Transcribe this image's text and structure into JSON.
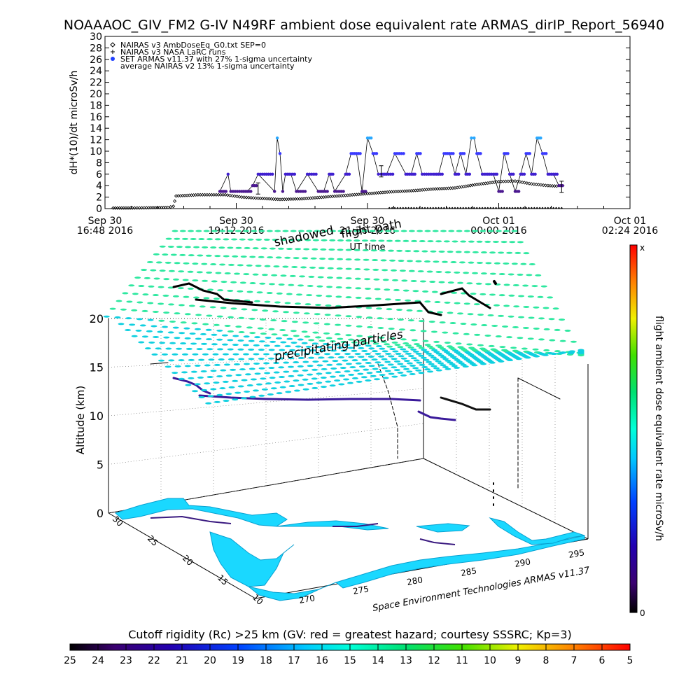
{
  "figure": {
    "title": "NOAAAOC_GIV_FM2 G-IV    N49RF  ambient dose equivalent rate ARMAS_dirIP_Report_56940",
    "credit": "Space Environment Technologies ARMAS v11.37",
    "annot_shadowed": "shadowed",
    "annot_flightpath": "flight path",
    "annot_precip": "precipitating particles"
  },
  "chart_data": [
    {
      "type": "scatter",
      "ylabel": "dH*(10)/dt microSv/h",
      "xlabel": "UT time",
      "ylim": [
        0,
        30
      ],
      "yticks": [
        "0",
        "2",
        "4",
        "6",
        "8",
        "10",
        "12",
        "14",
        "16",
        "18",
        "20",
        "22",
        "24",
        "26",
        "28",
        "30"
      ],
      "xticks": [
        {
          "l1": "Sep 30",
          "l2": "16:48 2016"
        },
        {
          "l1": "Sep 30",
          "l2": "19:12 2016"
        },
        {
          "l1": "Sep 30",
          "l2": "21:36 2016"
        },
        {
          "l1": "Oct 01",
          "l2": "00:00 2016"
        },
        {
          "l1": "Oct 01",
          "l2": "02:24 2016"
        }
      ],
      "x_range_hours": [
        16.8,
        26.4
      ],
      "legend": [
        {
          "symbol": "diamond",
          "text": "NAIRAS v3 AmbDoseEq_G0.txt SEP=0"
        },
        {
          "symbol": "plus",
          "text": "NAIRAS v3 NASA LaRC runs"
        },
        {
          "symbol": "dot",
          "text": "SET ARMAS v11.37 with 27% 1-sigma uncertainty"
        },
        {
          "symbol": "none",
          "text": "average NAIRAS v2 13% 1-sigma uncertainty"
        }
      ],
      "legend_position": "top-left",
      "series": [
        {
          "name": "NAIRAS v3 AmbDoseEq_G0.txt SEP=0",
          "x": [
            16.95,
            17.3,
            17.6,
            17.95,
            18.05,
            18.1,
            18.5,
            19.0,
            19.3,
            19.6,
            20.0,
            20.4,
            20.8,
            21.2,
            21.6,
            22.0,
            22.4,
            22.8,
            23.2,
            23.6,
            24.0,
            24.3,
            24.6,
            24.9,
            25.1
          ],
          "y": [
            0.1,
            0.1,
            0.15,
            0.2,
            0.4,
            2.2,
            2.4,
            2.4,
            2.0,
            1.8,
            1.6,
            1.7,
            2.0,
            2.3,
            2.6,
            2.9,
            3.1,
            3.4,
            3.6,
            4.2,
            4.7,
            4.8,
            4.3,
            4.0,
            3.9
          ]
        },
        {
          "name": "SET ARMAS v11.37 with 27% 1-sigma uncertainty",
          "x": [
            18.9,
            19.05,
            19.1,
            19.3,
            19.4,
            19.5,
            19.6,
            19.9,
            19.95,
            20.0,
            20.05,
            20.1,
            20.2,
            20.3,
            20.5,
            20.7,
            20.8,
            20.9,
            21.0,
            21.2,
            21.3,
            21.4,
            21.5,
            21.6,
            21.7,
            21.8,
            21.85,
            21.95,
            22.1,
            22.3,
            22.4,
            22.5,
            22.6,
            22.8,
            22.9,
            23.0,
            23.1,
            23.2,
            23.3,
            23.4,
            23.5,
            23.55,
            23.6,
            23.7,
            23.8,
            23.9,
            24.0,
            24.1,
            24.2,
            24.3,
            24.4,
            24.5,
            24.6,
            24.7,
            24.8,
            24.9,
            25.0,
            25.1,
            25.2
          ],
          "y": [
            3,
            6,
            3,
            3,
            3,
            4,
            6,
            3,
            12.3,
            9.6,
            3,
            6,
            6,
            3,
            6,
            3,
            3,
            6,
            3,
            6,
            9.6,
            9.6,
            3,
            12.3,
            9.6,
            6,
            6,
            6,
            9.6,
            6,
            6,
            9.6,
            6,
            6,
            6,
            9.6,
            9.6,
            6,
            9.6,
            6,
            12.3,
            12.3,
            9.6,
            6,
            6,
            6,
            3,
            9.6,
            6,
            3,
            6,
            9.6,
            6,
            12.3,
            9.6,
            6,
            6,
            4,
            4
          ]
        }
      ]
    },
    {
      "type": "scatter",
      "ylabel": "Altitude (km)",
      "zticks": [
        "0",
        "5",
        "10",
        "15",
        "20"
      ],
      "lat_ticks": [
        "30",
        "25",
        "20",
        "15",
        "10"
      ],
      "lon_ticks": [
        "270",
        "275",
        "280",
        "285",
        "290",
        "295"
      ],
      "colorbar": {
        "label": "flight ambient dose equivalent rate microSv/h",
        "top": "x",
        "bottom": "0"
      }
    },
    {
      "type": "heatmap",
      "title": "Cutoff rigidity (Rc) >25 km (GV: red = greatest hazard; courtesy SSSRC; Kp=3)",
      "ticks": [
        "25",
        "24",
        "23",
        "22",
        "21",
        "20",
        "19",
        "18",
        "17",
        "16",
        "15",
        "14",
        "13",
        "12",
        "11",
        "10",
        "9",
        "8",
        "7",
        "6",
        "5"
      ]
    }
  ]
}
